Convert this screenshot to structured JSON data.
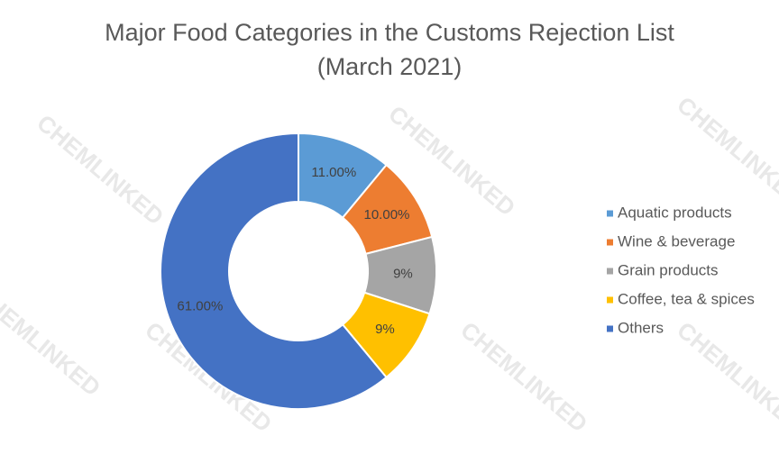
{
  "chart_data": {
    "type": "donut",
    "title": "Major Food Categories in the Customs Rejection List",
    "subtitle": "(March 2021)",
    "watermark": "CHEMLINKED",
    "categories": [
      "Aquatic products",
      "Wine & beverage",
      "Grain products",
      "Coffee, tea & spices",
      "Others"
    ],
    "values": [
      11,
      10,
      9,
      9,
      61
    ],
    "value_labels": [
      "11.00%",
      "10.00%",
      "9%",
      "9%",
      "61.00%"
    ],
    "colors": [
      "#5b9bd5",
      "#ed7d31",
      "#a5a5a5",
      "#ffc000",
      "#4472c4"
    ],
    "legend": "right"
  }
}
